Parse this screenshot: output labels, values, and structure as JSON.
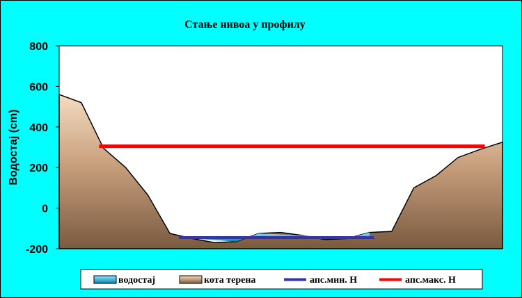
{
  "chart_data": {
    "type": "area",
    "title": "Стање нивоа у профилу",
    "ylabel": "Водостај (cm)",
    "xlabel": "",
    "ylim": [
      -200,
      800
    ],
    "yticks": [
      800,
      600,
      400,
      200,
      0,
      -200
    ],
    "grid": false,
    "legend_position": "bottom",
    "terrain": {
      "name": "кота терена",
      "color": "#CFA98A",
      "x": [
        0,
        5,
        10,
        15,
        20,
        25,
        30,
        35,
        40,
        45,
        50,
        55,
        60,
        65,
        70,
        75,
        80,
        85,
        90,
        95,
        100
      ],
      "values": [
        560,
        520,
        295,
        200,
        65,
        -125,
        -150,
        -170,
        -165,
        -125,
        -120,
        -135,
        -155,
        -150,
        -120,
        -115,
        100,
        160,
        250,
        290,
        325
      ]
    },
    "water_level": {
      "name": "водостај",
      "color": "#33CCFF",
      "x": [
        27,
        40,
        45,
        55,
        65,
        70
      ],
      "values": [
        -145,
        -145,
        -145,
        -145,
        -145,
        -145
      ],
      "bed": [
        -145,
        -165,
        -125,
        -135,
        -150,
        -120
      ]
    },
    "min_line": {
      "name": "апс.мин. Н",
      "color": "#3333AA",
      "value": -145,
      "x_range": [
        27,
        71
      ]
    },
    "max_line": {
      "name": "апс.макс. Н",
      "color": "#FF0000",
      "value": 305,
      "x_range": [
        9,
        96
      ]
    },
    "legend": [
      {
        "key": "water",
        "label": "водостај"
      },
      {
        "key": "terrain",
        "label": "кота терена"
      },
      {
        "key": "min",
        "label": "апс.мин. Н"
      },
      {
        "key": "max",
        "label": "апс.макс. Н"
      }
    ]
  }
}
